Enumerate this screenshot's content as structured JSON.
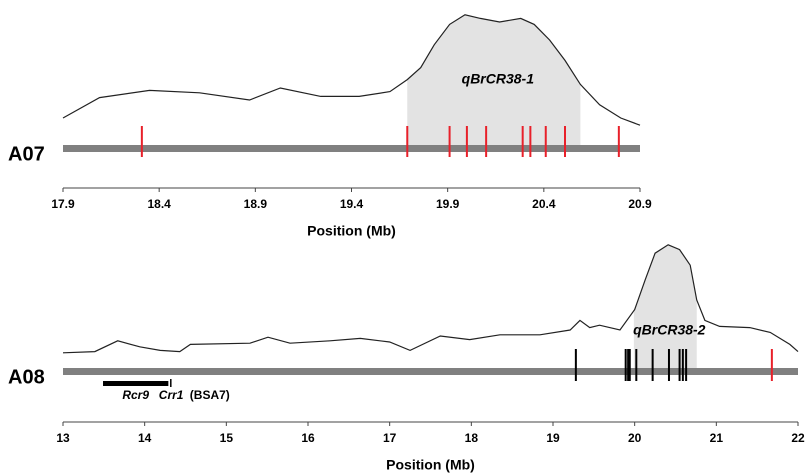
{
  "chart_data": [
    {
      "type": "line",
      "chromosome": "A07",
      "xlabel": "Position (Mb)",
      "xlim": [
        17.9,
        20.9
      ],
      "xticks": [
        17.9,
        18.4,
        18.9,
        19.4,
        19.9,
        20.4,
        20.9
      ],
      "ylim": [
        0,
        1
      ],
      "qtl": {
        "name": "qBrCR38-1",
        "start": 19.69,
        "end": 20.59
      },
      "x": [
        17.9,
        18.09,
        18.35,
        18.61,
        18.87,
        19.03,
        19.24,
        19.44,
        19.6,
        19.69,
        19.76,
        19.83,
        19.91,
        19.99,
        20.07,
        20.17,
        20.28,
        20.35,
        20.43,
        20.51,
        20.59,
        20.69,
        20.8,
        20.9
      ],
      "values": [
        0.1,
        0.27,
        0.33,
        0.31,
        0.25,
        0.35,
        0.28,
        0.28,
        0.32,
        0.42,
        0.52,
        0.71,
        0.88,
        0.96,
        0.93,
        0.9,
        0.93,
        0.88,
        0.75,
        0.58,
        0.38,
        0.21,
        0.1,
        0.04
      ],
      "markers": [
        {
          "color": "#e8202a",
          "positions": [
            18.31,
            19.69,
            19.91,
            20.0,
            20.1,
            20.29,
            20.33,
            20.41,
            20.51,
            20.79
          ]
        }
      ],
      "genes": []
    },
    {
      "type": "line",
      "chromosome": "A08",
      "xlabel": "Position (Mb)",
      "xlim": [
        13,
        22
      ],
      "xticks": [
        13,
        14,
        15,
        16,
        17,
        18,
        19,
        20,
        21,
        22
      ],
      "ylim": [
        0,
        1
      ],
      "qtl": {
        "name": "qBrCR38-2",
        "start": 19.99,
        "end": 20.76
      },
      "x": [
        13.0,
        13.39,
        13.67,
        13.94,
        14.19,
        14.43,
        14.56,
        15.29,
        15.51,
        15.78,
        16.27,
        16.64,
        17.0,
        17.25,
        17.62,
        17.98,
        18.35,
        18.84,
        19.21,
        19.33,
        19.45,
        19.57,
        19.82,
        20.0,
        20.13,
        20.25,
        20.41,
        20.55,
        20.68,
        20.76,
        20.86,
        21.04,
        21.41,
        21.66,
        21.9,
        22.0
      ],
      "values": [
        0.06,
        0.07,
        0.16,
        0.11,
        0.08,
        0.07,
        0.13,
        0.14,
        0.19,
        0.14,
        0.16,
        0.18,
        0.15,
        0.08,
        0.2,
        0.17,
        0.21,
        0.21,
        0.25,
        0.33,
        0.27,
        0.29,
        0.25,
        0.42,
        0.67,
        0.89,
        0.96,
        0.92,
        0.79,
        0.5,
        0.33,
        0.28,
        0.27,
        0.23,
        0.13,
        0.07
      ],
      "markers": [
        {
          "color": "#000000",
          "positions": [
            19.28,
            19.89,
            19.92,
            19.94,
            20.02,
            20.22,
            20.42,
            20.55,
            20.59,
            20.63
          ]
        },
        {
          "color": "#e8202a",
          "positions": [
            21.68
          ]
        }
      ],
      "genes": [
        {
          "name": "Rcr9",
          "start": 13.49,
          "end": 14.29
        },
        {
          "name": "Crr1",
          "start": 14.32,
          "end": 14.32,
          "note": "(BSA7)"
        }
      ]
    }
  ]
}
